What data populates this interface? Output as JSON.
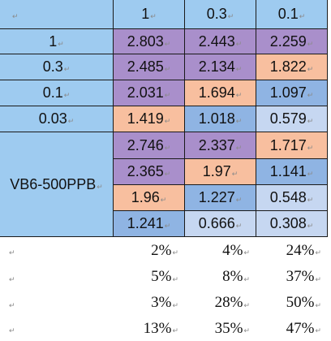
{
  "mark": "↵",
  "header": {
    "corner": "",
    "cols": [
      "1",
      "0.3",
      "0.1"
    ]
  },
  "rows": [
    {
      "label": "1",
      "cells": [
        {
          "v": "2.803",
          "c": "purple"
        },
        {
          "v": "2.443",
          "c": "purple"
        },
        {
          "v": "2.259",
          "c": "purple"
        }
      ]
    },
    {
      "label": "0.3",
      "cells": [
        {
          "v": "2.485",
          "c": "purple"
        },
        {
          "v": "2.134",
          "c": "purple"
        },
        {
          "v": "1.822",
          "c": "orange"
        }
      ]
    },
    {
      "label": "0.1",
      "cells": [
        {
          "v": "2.031",
          "c": "purple"
        },
        {
          "v": "1.694",
          "c": "orange"
        },
        {
          "v": "1.097",
          "c": "blue"
        }
      ]
    },
    {
      "label": "0.03",
      "cells": [
        {
          "v": "1.419",
          "c": "orange"
        },
        {
          "v": "1.018",
          "c": "blue"
        },
        {
          "v": "0.579",
          "c": "lavender"
        }
      ]
    }
  ],
  "group": {
    "label": "VB6-500PPB",
    "rows": [
      [
        {
          "v": "2.746",
          "c": "purple"
        },
        {
          "v": "2.337",
          "c": "purple"
        },
        {
          "v": "1.717",
          "c": "orange"
        }
      ],
      [
        {
          "v": "2.365",
          "c": "purple"
        },
        {
          "v": "1.97",
          "c": "orange"
        },
        {
          "v": "1.141",
          "c": "blue"
        }
      ],
      [
        {
          "v": "1.96",
          "c": "orange"
        },
        {
          "v": "1.227",
          "c": "blue"
        },
        {
          "v": "0.548",
          "c": "lavender"
        }
      ],
      [
        {
          "v": "1.241",
          "c": "blue"
        },
        {
          "v": "0.666",
          "c": "lavender"
        },
        {
          "v": "0.308",
          "c": "lavender"
        }
      ]
    ]
  },
  "percent_rows": [
    [
      "2%",
      "4%",
      "24%"
    ],
    [
      "5%",
      "8%",
      "37%"
    ],
    [
      "3%",
      "28%",
      "50%"
    ],
    [
      "13%",
      "35%",
      "47%"
    ]
  ],
  "colors": {
    "light_blue": "#9ecbf0",
    "purple": "#a98fcb",
    "orange": "#f8bf9f",
    "blue": "#8fb4e3",
    "lavender": "#c6d7f1"
  }
}
